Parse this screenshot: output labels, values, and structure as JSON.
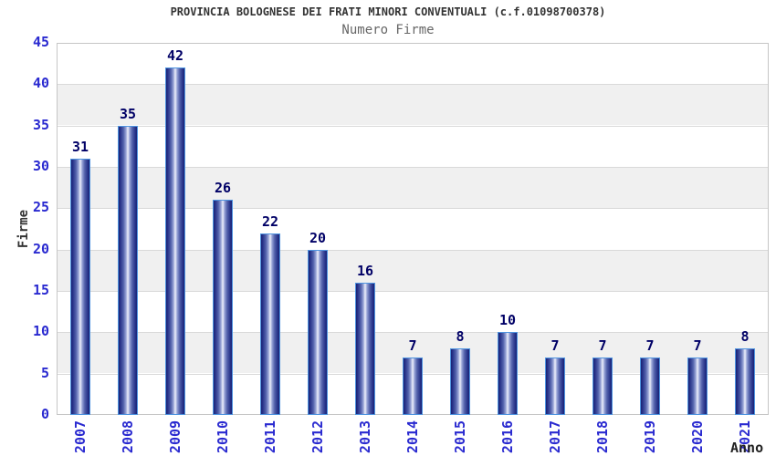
{
  "header": {
    "title": "PROVINCIA BOLOGNESE DEI FRATI MINORI CONVENTUALI (c.f.01098700378)",
    "subtitle": "Numero Firme"
  },
  "axes": {
    "y_label": "Firme",
    "x_label": "Anno"
  },
  "colors": {
    "title_text": "#333333",
    "subtitle_text": "#666666",
    "tick_label": "#2a2ad0",
    "value_label": "#000066",
    "axis_label": "#333333",
    "bar_border": "#4e94e0",
    "bar_dark": "#1a2373",
    "bar_highlight": "#edf0fb",
    "band_gray": "#f0f0f0",
    "gridline": "#d9d9d9",
    "plot_border": "#c6c6c6",
    "background": "#ffffff"
  },
  "chart_data": {
    "type": "bar",
    "title": "PROVINCIA BOLOGNESE DEI FRATI MINORI CONVENTUALI (c.f.01098700378)",
    "subtitle": "Numero Firme",
    "xlabel": "Anno",
    "ylabel": "Firme",
    "categories": [
      "2007",
      "2008",
      "2009",
      "2010",
      "2011",
      "2012",
      "2013",
      "2014",
      "2015",
      "2016",
      "2017",
      "2018",
      "2019",
      "2020",
      "2021"
    ],
    "values": [
      31,
      35,
      42,
      26,
      22,
      20,
      16,
      7,
      8,
      10,
      7,
      7,
      7,
      7,
      8
    ],
    "ylim": [
      0,
      45
    ],
    "ytick_step": 5,
    "yticks": [
      0,
      5,
      10,
      15,
      20,
      25,
      30,
      35,
      40,
      45
    ],
    "grid": true,
    "banded_background": true,
    "legend_position": "none",
    "value_labels_shown": true
  }
}
